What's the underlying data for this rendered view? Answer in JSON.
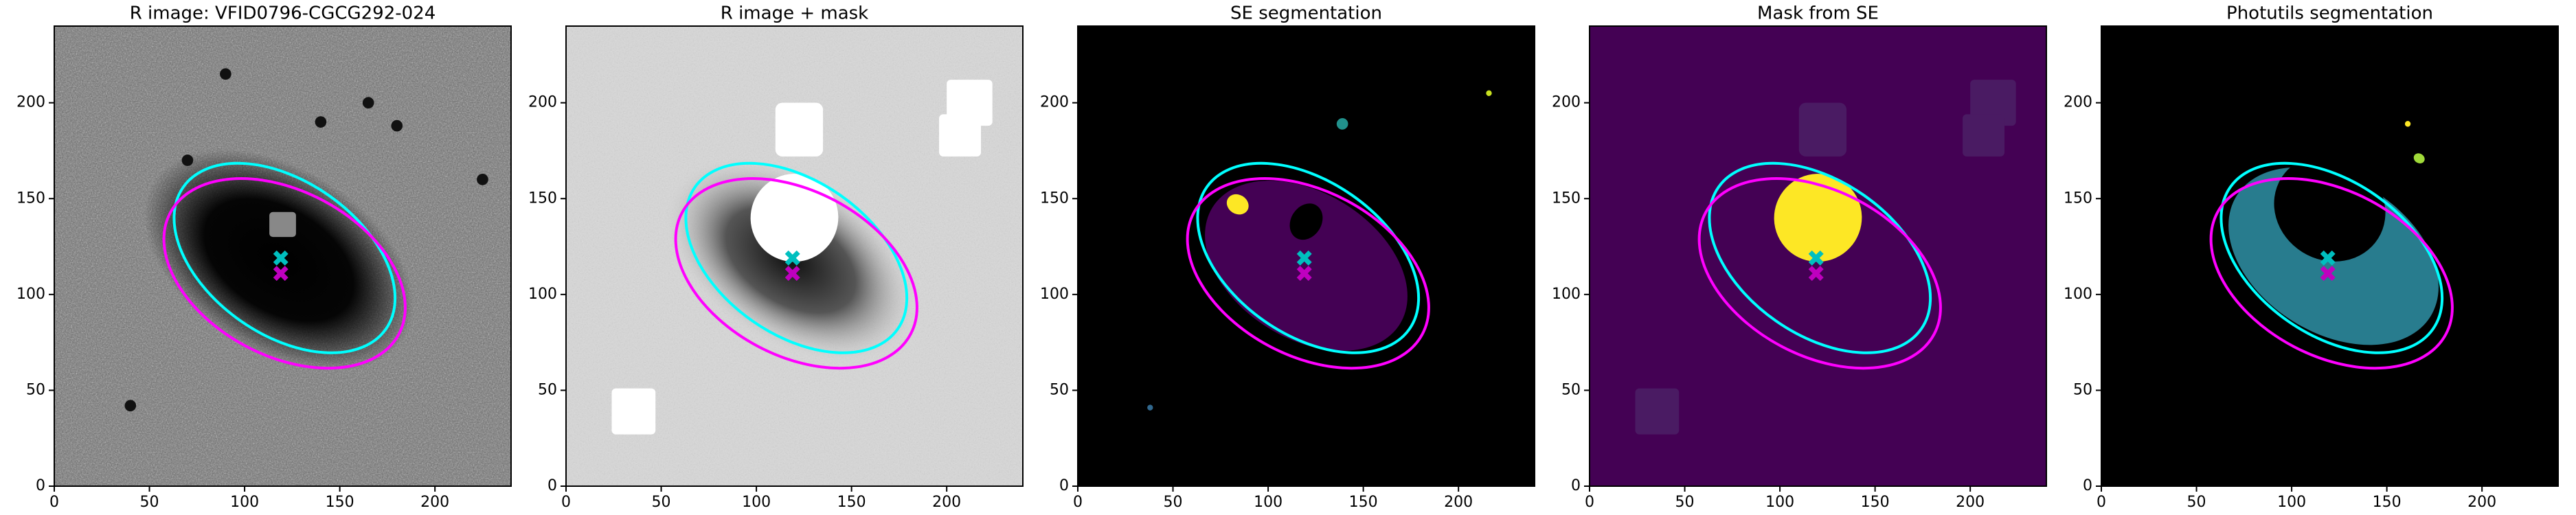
{
  "chart_data": [
    {
      "type": "image",
      "title": "R image: VFID0796-CGCG292-024",
      "cmap": "gray",
      "xlim": [
        0,
        240
      ],
      "ylim": [
        0,
        240
      ],
      "xticks": [
        0,
        50,
        100,
        150,
        200
      ],
      "yticks": [
        0,
        50,
        100,
        150,
        200
      ],
      "ellipses": [
        {
          "color": "#00ffff",
          "x": 121,
          "y": 119,
          "width": 130,
          "height": 80,
          "angle": -35
        },
        {
          "color": "#ff00ff",
          "x": 121,
          "y": 111,
          "width": 136,
          "height": 86,
          "angle": -28
        }
      ],
      "markers": [
        {
          "color": "#00bfbf",
          "x": 119,
          "y": 119
        },
        {
          "color": "#bf00bf",
          "x": 119,
          "y": 111
        }
      ]
    },
    {
      "type": "image",
      "title": "R image + mask",
      "cmap": "gray_r",
      "xlim": [
        0,
        240
      ],
      "ylim": [
        0,
        240
      ],
      "xticks": [
        0,
        50,
        100,
        150,
        200
      ],
      "yticks": [
        0,
        50,
        100,
        150,
        200
      ],
      "ellipses": [
        {
          "color": "#00ffff",
          "x": 121,
          "y": 119,
          "width": 130,
          "height": 80,
          "angle": -35
        },
        {
          "color": "#ff00ff",
          "x": 121,
          "y": 111,
          "width": 136,
          "height": 86,
          "angle": -28
        }
      ],
      "markers": [
        {
          "color": "#00bfbf",
          "x": 119,
          "y": 119
        },
        {
          "color": "#bf00bf",
          "x": 119,
          "y": 111
        }
      ]
    },
    {
      "type": "image",
      "title": "SE segmentation",
      "cmap": "viridis",
      "xlim": [
        0,
        240
      ],
      "ylim": [
        0,
        240
      ],
      "xticks": [
        0,
        50,
        100,
        150,
        200
      ],
      "yticks": [
        0,
        50,
        100,
        150,
        200
      ],
      "ellipses": [
        {
          "color": "#00ffff",
          "x": 121,
          "y": 119,
          "width": 130,
          "height": 80,
          "angle": -35
        },
        {
          "color": "#ff00ff",
          "x": 121,
          "y": 111,
          "width": 136,
          "height": 86,
          "angle": -28
        }
      ],
      "markers": [
        {
          "color": "#00bfbf",
          "x": 119,
          "y": 119
        },
        {
          "color": "#bf00bf",
          "x": 119,
          "y": 111
        }
      ]
    },
    {
      "type": "image",
      "title": "Mask from SE",
      "cmap": "viridis",
      "xlim": [
        0,
        240
      ],
      "ylim": [
        0,
        240
      ],
      "xticks": [
        0,
        50,
        100,
        150,
        200
      ],
      "yticks": [
        0,
        50,
        100,
        150,
        200
      ],
      "ellipses": [
        {
          "color": "#00ffff",
          "x": 121,
          "y": 119,
          "width": 130,
          "height": 80,
          "angle": -35
        },
        {
          "color": "#ff00ff",
          "x": 121,
          "y": 111,
          "width": 136,
          "height": 86,
          "angle": -28
        }
      ],
      "markers": [
        {
          "color": "#00bfbf",
          "x": 119,
          "y": 119
        },
        {
          "color": "#bf00bf",
          "x": 119,
          "y": 111
        }
      ]
    },
    {
      "type": "image",
      "title": "Photutils segmentation",
      "cmap": "viridis",
      "xlim": [
        0,
        240
      ],
      "ylim": [
        0,
        240
      ],
      "xticks": [
        0,
        50,
        100,
        150,
        200
      ],
      "yticks": [
        0,
        50,
        100,
        150,
        200
      ],
      "ellipses": [
        {
          "color": "#00ffff",
          "x": 121,
          "y": 119,
          "width": 130,
          "height": 80,
          "angle": -35
        },
        {
          "color": "#ff00ff",
          "x": 121,
          "y": 111,
          "width": 136,
          "height": 86,
          "angle": -28
        }
      ],
      "markers": [
        {
          "color": "#00bfbf",
          "x": 119,
          "y": 119
        },
        {
          "color": "#bf00bf",
          "x": 119,
          "y": 111
        }
      ]
    }
  ]
}
